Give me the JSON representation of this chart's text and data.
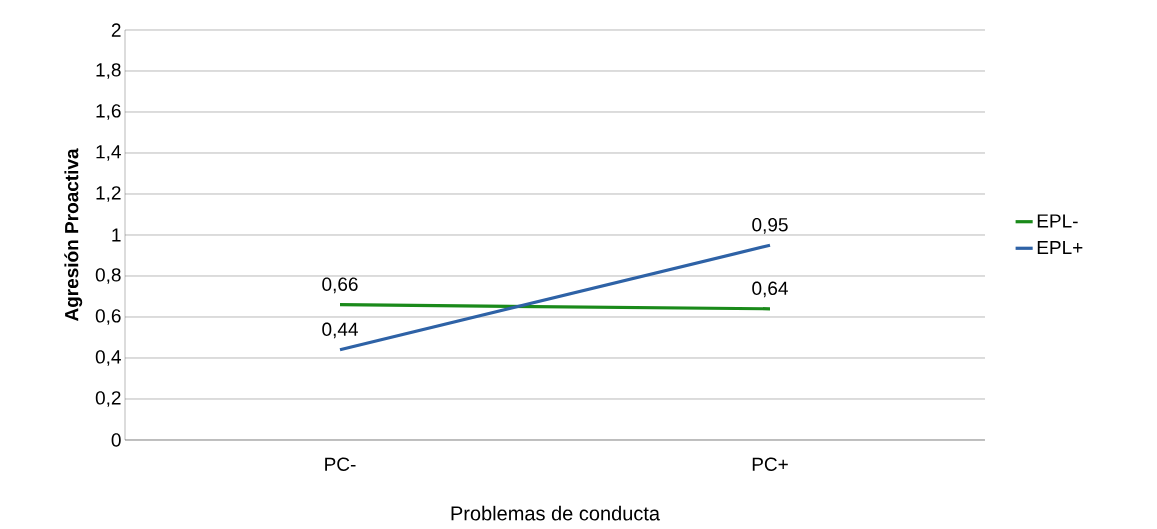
{
  "chart_data": {
    "type": "line",
    "xlabel": "Problemas de conducta",
    "ylabel": "Agresión Proactiva",
    "categories": [
      "PC-",
      "PC+"
    ],
    "series": [
      {
        "name": "EPL-",
        "color": "#1a8a1a",
        "values": [
          0.66,
          0.64
        ],
        "value_labels": [
          "0,66",
          "0,64"
        ]
      },
      {
        "name": "EPL+",
        "color": "#2e62a6",
        "values": [
          0.44,
          0.95
        ],
        "value_labels": [
          "0,44",
          "0,95"
        ]
      }
    ],
    "ylim": [
      0,
      2
    ],
    "yticks": [
      0,
      {
        "value": 0.2,
        "label": "0,2"
      },
      {
        "value": 0.4,
        "label": "0,4"
      },
      {
        "value": 0.6,
        "label": "0,6"
      },
      {
        "value": 0.8,
        "label": "0,8"
      },
      1,
      {
        "value": 1.2,
        "label": "1,2"
      },
      {
        "value": 1.4,
        "label": "1,4"
      },
      {
        "value": 1.6,
        "label": "1,6"
      },
      {
        "value": 1.8,
        "label": "1,8"
      },
      2
    ],
    "grid": "y",
    "legend": "right",
    "marker": "none",
    "line_style": "solid"
  }
}
